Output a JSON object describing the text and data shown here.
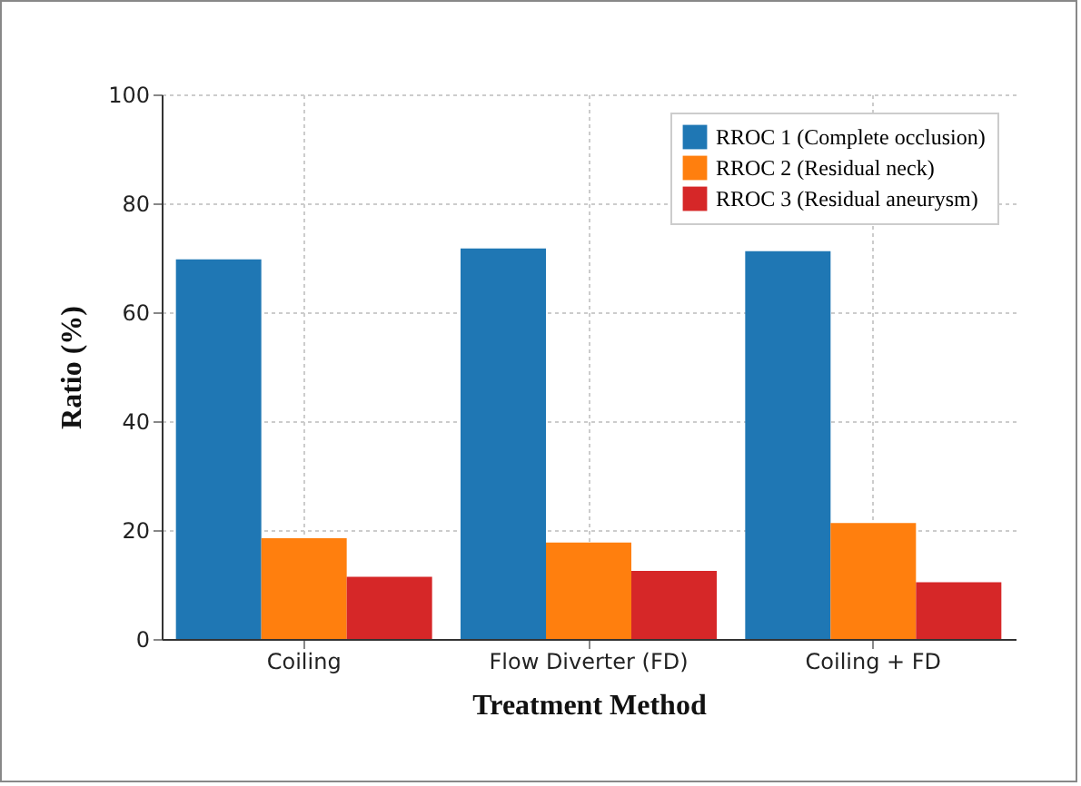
{
  "chart_data": {
    "type": "bar",
    "xlabel": "Treatment Method",
    "ylabel": "Ratio  (%)",
    "categories": [
      "Coiling",
      "Flow Diverter (FD)",
      "Coiling + FD"
    ],
    "series": [
      {
        "name": "RROC 1 (Complete occlusion)",
        "color": "#1f77b4",
        "values": [
          69.7,
          71.7,
          71.2
        ]
      },
      {
        "name": "RROC 2    (Residual neck)",
        "color": "#ff7f0e",
        "values": [
          18.5,
          17.7,
          21.3
        ]
      },
      {
        "name": "RROC 3 (Residual aneurysm)",
        "color": "#d62728",
        "values": [
          11.4,
          12.5,
          10.4
        ]
      }
    ],
    "ylim": [
      0,
      100
    ],
    "yticks": [
      0,
      20,
      40,
      60,
      80,
      100
    ],
    "grid": true,
    "legend": "top right"
  }
}
